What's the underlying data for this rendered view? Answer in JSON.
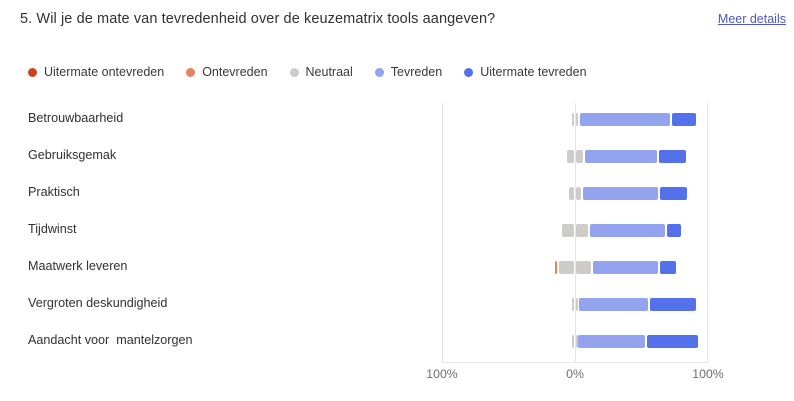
{
  "header": {
    "title": "5. Wil je de mate van tevredenheid over de keuzematrix tools aangeven?",
    "details_link": "Meer details"
  },
  "colors": {
    "link": "#4f56c9",
    "gridline": "#e7e6e6",
    "uitermate_ontevreden": "#c8441d",
    "ontevreden": "#e8825d",
    "neutraal": "#cecccb",
    "tevreden": "#93a3ee",
    "uitermate_tevreden": "#5470eb"
  },
  "chart_data": {
    "type": "bar",
    "variant": "diverging-stacked-likert",
    "title": "",
    "xlabel": "",
    "ylabel": "",
    "xlim": [
      -100,
      100
    ],
    "axis_ticks": [
      {
        "label": "100%",
        "position": -100
      },
      {
        "label": "0%",
        "position": 0
      },
      {
        "label": "100%",
        "position": 100
      }
    ],
    "legend_position": "top",
    "neutral_centered_on_zero": true,
    "grid": "vertical-lines-at-ticks",
    "categories": [
      "Betrouwbaarheid",
      "Gebruiksgemak",
      "Praktisch",
      "Tijdwinst",
      "Maatwerk leveren",
      "Vergroten deskundigheid",
      "Aandacht voor  mantelzorgen"
    ],
    "series": [
      {
        "name": "Uitermate ontevreden",
        "color": "#c8441d",
        "side": "negative",
        "values": [
          0,
          0,
          0,
          0,
          0,
          0,
          0
        ]
      },
      {
        "name": "Ontevreden",
        "color": "#e8825d",
        "side": "negative",
        "values": [
          0,
          0,
          0,
          0,
          2,
          0,
          0
        ]
      },
      {
        "name": "Neutraal",
        "color": "#cecccb",
        "side": "center",
        "values": [
          6,
          13,
          10,
          21,
          25,
          5,
          3
        ]
      },
      {
        "name": "Tevreden",
        "color": "#93a3ee",
        "side": "positive",
        "values": [
          69,
          56,
          58,
          58,
          51,
          53,
          52
        ]
      },
      {
        "name": "Uitermate tevreden",
        "color": "#5470eb",
        "side": "positive",
        "values": [
          20,
          22,
          22,
          12,
          13,
          36,
          40
        ]
      }
    ]
  }
}
